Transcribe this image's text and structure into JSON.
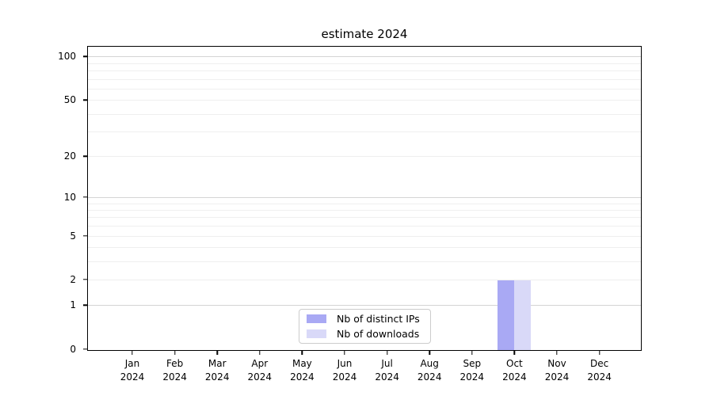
{
  "chart_data": {
    "type": "bar",
    "title": "estimate 2024",
    "categories": [
      "Jan",
      "Feb",
      "Mar",
      "Apr",
      "May",
      "Jun",
      "Jul",
      "Aug",
      "Sep",
      "Oct",
      "Nov",
      "Dec"
    ],
    "year_label": "2024",
    "series": [
      {
        "name": "Nb of distinct IPs",
        "color": "#a9a9f4",
        "values": [
          0,
          0,
          0,
          0,
          0,
          0,
          0,
          0,
          0,
          2,
          0,
          0
        ]
      },
      {
        "name": "Nb of downloads",
        "color": "#d9d9f8",
        "values": [
          0,
          0,
          0,
          0,
          0,
          0,
          0,
          0,
          0,
          2,
          0,
          0
        ]
      }
    ],
    "ylabel": "",
    "xlabel": "",
    "yticks": [
      0,
      1,
      2,
      5,
      10,
      20,
      50,
      100
    ],
    "major_gridlines": [
      1,
      10,
      100
    ],
    "minor_gridlines": [
      2,
      3,
      4,
      5,
      6,
      7,
      8,
      9,
      20,
      30,
      40,
      50,
      60,
      70,
      80,
      90
    ],
    "ylim": [
      0,
      117
    ],
    "scale": "log1p",
    "grid": true,
    "legend_position": "lower center",
    "colors": {
      "axis": "#000000",
      "major_grid": "#d4d4d4",
      "minor_grid": "#efefef",
      "background": "#ffffff"
    }
  }
}
